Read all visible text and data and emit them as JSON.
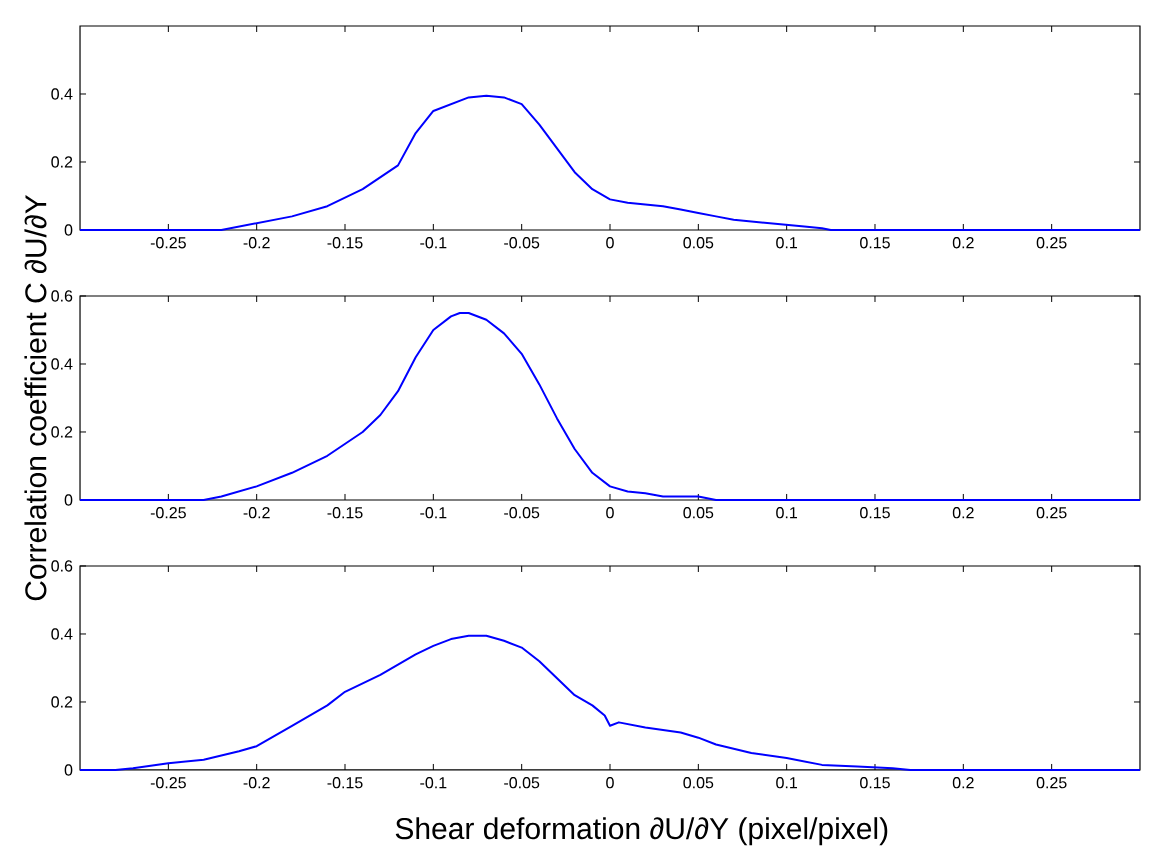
{
  "chart_data": [
    {
      "type": "line",
      "xlim": [
        -0.3,
        0.3
      ],
      "ylim": [
        0,
        0.6
      ],
      "xticks": [
        -0.25,
        -0.2,
        -0.15,
        -0.1,
        -0.05,
        0,
        0.05,
        0.1,
        0.15,
        0.2,
        0.25
      ],
      "yticks": [
        0,
        0.2,
        0.4
      ],
      "grid": false,
      "marker": "none",
      "line_style": "solid",
      "series": [
        {
          "color": "#0000ff",
          "x": [
            -0.3,
            -0.22,
            -0.2,
            -0.18,
            -0.16,
            -0.14,
            -0.12,
            -0.11,
            -0.1,
            -0.09,
            -0.08,
            -0.07,
            -0.06,
            -0.05,
            -0.04,
            -0.03,
            -0.02,
            -0.01,
            0,
            0.01,
            0.02,
            0.03,
            0.04,
            0.05,
            0.06,
            0.07,
            0.08,
            0.09,
            0.1,
            0.11,
            0.12,
            0.125,
            0.3
          ],
          "values": [
            0,
            0,
            0.02,
            0.04,
            0.07,
            0.12,
            0.19,
            0.285,
            0.35,
            0.37,
            0.39,
            0.395,
            0.39,
            0.37,
            0.31,
            0.24,
            0.17,
            0.12,
            0.09,
            0.08,
            0.075,
            0.07,
            0.06,
            0.05,
            0.04,
            0.03,
            0.025,
            0.02,
            0.015,
            0.01,
            0.005,
            0,
            0
          ]
        }
      ]
    },
    {
      "type": "line",
      "ylabel": "Correlation coefficient C ∂U/∂Y",
      "xlim": [
        -0.3,
        0.3
      ],
      "ylim": [
        0,
        0.6
      ],
      "xticks": [
        -0.25,
        -0.2,
        -0.15,
        -0.1,
        -0.05,
        0,
        0.05,
        0.1,
        0.15,
        0.2,
        0.25
      ],
      "yticks": [
        0,
        0.2,
        0.4,
        0.6
      ],
      "grid": false,
      "marker": "none",
      "line_style": "solid",
      "series": [
        {
          "color": "#0000ff",
          "x": [
            -0.3,
            -0.23,
            -0.22,
            -0.2,
            -0.18,
            -0.16,
            -0.14,
            -0.13,
            -0.12,
            -0.11,
            -0.1,
            -0.09,
            -0.085,
            -0.08,
            -0.07,
            -0.06,
            -0.05,
            -0.04,
            -0.03,
            -0.02,
            -0.01,
            0,
            0.01,
            0.02,
            0.03,
            0.05,
            0.06,
            0.3
          ],
          "values": [
            0,
            0,
            0.01,
            0.04,
            0.08,
            0.13,
            0.2,
            0.25,
            0.32,
            0.42,
            0.5,
            0.54,
            0.55,
            0.55,
            0.53,
            0.49,
            0.43,
            0.34,
            0.24,
            0.15,
            0.08,
            0.04,
            0.025,
            0.02,
            0.01,
            0.01,
            0,
            0
          ]
        }
      ]
    },
    {
      "type": "line",
      "xlabel": "Shear deformation ∂U/∂Y (pixel/pixel)",
      "xlim": [
        -0.3,
        0.3
      ],
      "ylim": [
        0,
        0.6
      ],
      "xticks": [
        -0.25,
        -0.2,
        -0.15,
        -0.1,
        -0.05,
        0,
        0.05,
        0.1,
        0.15,
        0.2,
        0.25
      ],
      "yticks": [
        0,
        0.2,
        0.4,
        0.6
      ],
      "grid": false,
      "marker": "none",
      "line_style": "solid",
      "series": [
        {
          "color": "#0000ff",
          "x": [
            -0.3,
            -0.28,
            -0.27,
            -0.25,
            -0.23,
            -0.21,
            -0.2,
            -0.18,
            -0.16,
            -0.15,
            -0.13,
            -0.11,
            -0.1,
            -0.09,
            -0.08,
            -0.07,
            -0.06,
            -0.05,
            -0.04,
            -0.03,
            -0.02,
            -0.01,
            -0.003,
            0,
            0.005,
            0.02,
            0.04,
            0.05,
            0.06,
            0.08,
            0.1,
            0.12,
            0.14,
            0.16,
            0.17,
            0.3
          ],
          "values": [
            0,
            0,
            0.005,
            0.02,
            0.03,
            0.055,
            0.07,
            0.13,
            0.19,
            0.23,
            0.28,
            0.34,
            0.365,
            0.385,
            0.395,
            0.395,
            0.38,
            0.36,
            0.32,
            0.27,
            0.22,
            0.19,
            0.16,
            0.13,
            0.14,
            0.125,
            0.11,
            0.095,
            0.075,
            0.05,
            0.035,
            0.015,
            0.01,
            0.005,
            0,
            0
          ]
        }
      ]
    }
  ]
}
